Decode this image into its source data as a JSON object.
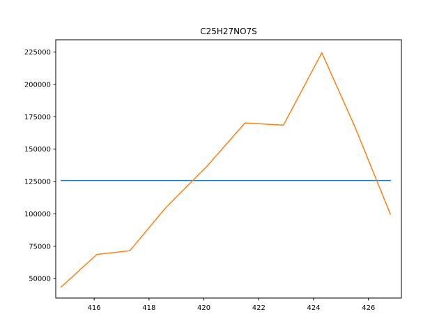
{
  "chart_data": {
    "type": "line",
    "title": "C25H27NO7S",
    "xlabel": "",
    "ylabel": "",
    "xlim": [
      414.6,
      427.2
    ],
    "ylim": [
      35000,
      234500
    ],
    "xticks": [
      416,
      418,
      420,
      422,
      424,
      426
    ],
    "yticks": [
      50000,
      75000,
      100000,
      125000,
      150000,
      175000,
      200000,
      225000
    ],
    "grid": false,
    "series": [
      {
        "color": "#1f77b4",
        "x": [
          414.8,
          426.8
        ],
        "y": [
          125800,
          125800
        ]
      },
      {
        "color": "#ff7f0e",
        "x": [
          414.8,
          416.1,
          417.3,
          418.6,
          420.1,
          421.5,
          422.9,
          424.3,
          425.5,
          426.8
        ],
        "y": [
          43500,
          68700,
          71500,
          104500,
          136500,
          170300,
          168500,
          224500,
          167500,
          99700
        ]
      }
    ]
  }
}
